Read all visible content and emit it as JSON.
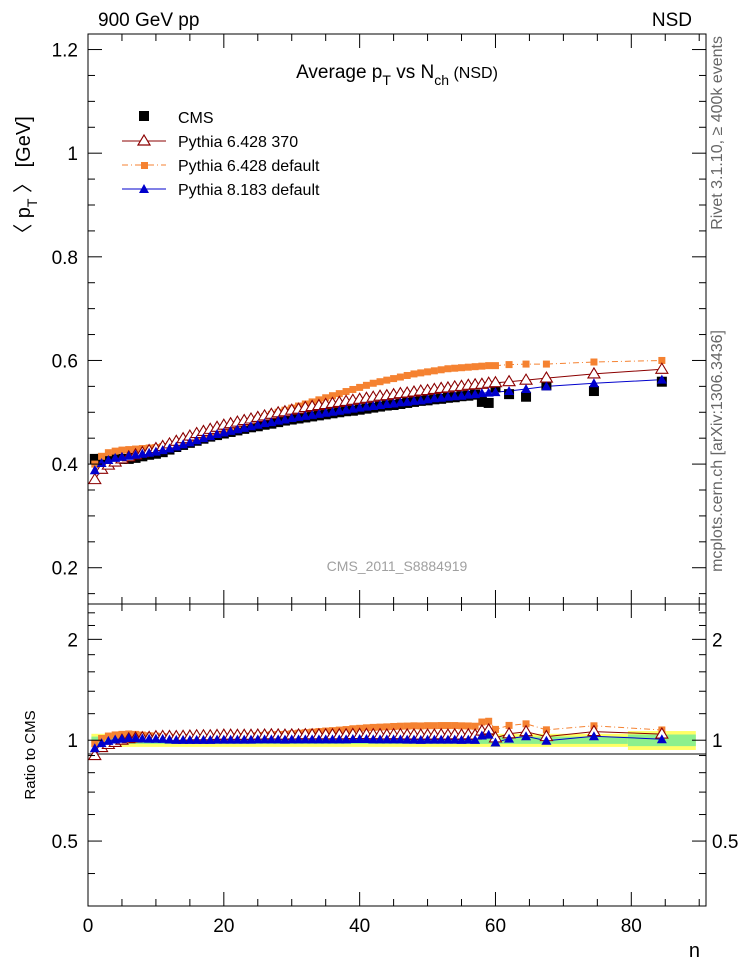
{
  "header": {
    "left": "900 GeV pp",
    "right": "NSD"
  },
  "side_labels": {
    "rivet": "Rivet 3.1.10, ≥ 400k events",
    "mcplots": "mcplots.cern.ch [arXiv:1306.3436]"
  },
  "colors": {
    "cms": "#000000",
    "py6_370": "#8b0000",
    "py6_default": "#f58231",
    "py8_default": "#0000cc",
    "band_inner": "#8df08d",
    "band_outer": "#ffff66"
  },
  "chart_data": [
    {
      "type": "scatter",
      "panel": "main",
      "title_parts": {
        "a": "Average p",
        "a_sub": "T",
        "b": " vs N",
        "b_sub": "ch",
        "c": " (NSD)"
      },
      "ylabel_parts": {
        "open": "〈 p",
        "sub": "T",
        "close": " 〉 [GeV]"
      },
      "watermark": "CMS_2011_S8884919",
      "xlim": [
        0,
        91
      ],
      "ylim": [
        0.13,
        1.23
      ],
      "y_ticks": [
        "0.2",
        "0.4",
        "0.6",
        "0.8",
        "1",
        "1.2"
      ],
      "legend_position": "top-left",
      "legend": [
        "CMS",
        "Pythia 6.428 370",
        "Pythia 6.428 default",
        "Pythia 8.183 default"
      ],
      "series": [
        {
          "name": "CMS",
          "x": [
            1,
            2,
            3,
            4,
            5,
            6,
            7,
            8,
            9,
            10,
            11,
            12,
            13,
            14,
            15,
            16,
            17,
            18,
            19,
            20,
            21,
            22,
            23,
            24,
            25,
            26,
            27,
            28,
            29,
            30,
            31,
            32,
            33,
            34,
            35,
            36,
            37,
            38,
            39,
            40,
            41,
            42,
            43,
            44,
            45,
            46,
            47,
            48,
            49,
            50,
            51,
            52,
            53,
            54,
            55,
            56,
            57,
            58,
            59,
            60,
            62,
            64.5,
            67.5,
            74.5,
            84.5
          ],
          "y": [
            0.41,
            0.41,
            0.41,
            0.41,
            0.41,
            0.41,
            0.412,
            0.415,
            0.418,
            0.42,
            0.423,
            0.428,
            0.433,
            0.437,
            0.441,
            0.445,
            0.449,
            0.453,
            0.456,
            0.459,
            0.462,
            0.465,
            0.468,
            0.471,
            0.473,
            0.476,
            0.478,
            0.481,
            0.484,
            0.486,
            0.488,
            0.49,
            0.492,
            0.494,
            0.496,
            0.498,
            0.5,
            0.502,
            0.503,
            0.505,
            0.507,
            0.509,
            0.511,
            0.513,
            0.514,
            0.516,
            0.518,
            0.52,
            0.522,
            0.523,
            0.525,
            0.526,
            0.528,
            0.529,
            0.531,
            0.532,
            0.534,
            0.52,
            0.518,
            0.548,
            0.535,
            0.53,
            0.552,
            0.541,
            0.559
          ]
        },
        {
          "name": "Pythia 6.428 370",
          "x": [
            1,
            2,
            3,
            4,
            5,
            6,
            7,
            8,
            9,
            10,
            11,
            12,
            13,
            14,
            15,
            16,
            17,
            18,
            19,
            20,
            21,
            22,
            23,
            24,
            25,
            26,
            27,
            28,
            29,
            30,
            31,
            32,
            33,
            34,
            35,
            36,
            37,
            38,
            39,
            40,
            41,
            42,
            43,
            44,
            45,
            46,
            47,
            48,
            49,
            50,
            51,
            52,
            53,
            54,
            55,
            56,
            57,
            58,
            59,
            60,
            62,
            64.5,
            67.5,
            74.5,
            84.5
          ],
          "y": [
            0.37,
            0.39,
            0.398,
            0.404,
            0.41,
            0.414,
            0.418,
            0.422,
            0.426,
            0.43,
            0.434,
            0.439,
            0.444,
            0.449,
            0.454,
            0.459,
            0.463,
            0.467,
            0.471,
            0.475,
            0.478,
            0.481,
            0.484,
            0.487,
            0.49,
            0.493,
            0.496,
            0.499,
            0.501,
            0.504,
            0.506,
            0.509,
            0.511,
            0.513,
            0.515,
            0.517,
            0.519,
            0.521,
            0.523,
            0.525,
            0.527,
            0.529,
            0.531,
            0.532,
            0.534,
            0.536,
            0.537,
            0.539,
            0.541,
            0.542,
            0.544,
            0.546,
            0.547,
            0.549,
            0.55,
            0.552,
            0.553,
            0.554,
            0.556,
            0.557,
            0.559,
            0.562,
            0.566,
            0.574,
            0.583
          ]
        },
        {
          "name": "Pythia 6.428 default",
          "x": [
            1,
            2,
            3,
            4,
            5,
            6,
            7,
            8,
            9,
            10,
            11,
            12,
            13,
            14,
            15,
            16,
            17,
            18,
            19,
            20,
            21,
            22,
            23,
            24,
            25,
            26,
            27,
            28,
            29,
            30,
            31,
            32,
            33,
            34,
            35,
            36,
            37,
            38,
            39,
            40,
            41,
            42,
            43,
            44,
            45,
            46,
            47,
            48,
            49,
            50,
            51,
            52,
            53,
            54,
            55,
            56,
            57,
            58,
            59,
            60,
            62,
            64.5,
            67.5,
            74.5,
            84.5
          ],
          "y": [
            0.4,
            0.415,
            0.422,
            0.425,
            0.427,
            0.428,
            0.429,
            0.43,
            0.431,
            0.432,
            0.434,
            0.437,
            0.44,
            0.444,
            0.448,
            0.452,
            0.456,
            0.46,
            0.464,
            0.468,
            0.472,
            0.476,
            0.48,
            0.484,
            0.488,
            0.492,
            0.496,
            0.5,
            0.504,
            0.508,
            0.512,
            0.516,
            0.52,
            0.524,
            0.528,
            0.532,
            0.536,
            0.54,
            0.544,
            0.548,
            0.552,
            0.556,
            0.559,
            0.562,
            0.565,
            0.568,
            0.571,
            0.574,
            0.576,
            0.578,
            0.58,
            0.582,
            0.584,
            0.585,
            0.586,
            0.587,
            0.588,
            0.589,
            0.59,
            0.59,
            0.592,
            0.593,
            0.593,
            0.597,
            0.6
          ]
        },
        {
          "name": "Pythia 8.183 default",
          "x": [
            1,
            2,
            3,
            4,
            5,
            6,
            7,
            8,
            9,
            10,
            11,
            12,
            13,
            14,
            15,
            16,
            17,
            18,
            19,
            20,
            21,
            22,
            23,
            24,
            25,
            26,
            27,
            28,
            29,
            30,
            31,
            32,
            33,
            34,
            35,
            36,
            37,
            38,
            39,
            40,
            41,
            42,
            43,
            44,
            45,
            46,
            47,
            48,
            49,
            50,
            51,
            52,
            53,
            54,
            55,
            56,
            57,
            58,
            59,
            60,
            62,
            64.5,
            67.5,
            74.5,
            84.5
          ],
          "y": [
            0.388,
            0.402,
            0.408,
            0.412,
            0.414,
            0.416,
            0.418,
            0.42,
            0.422,
            0.424,
            0.427,
            0.43,
            0.434,
            0.438,
            0.442,
            0.446,
            0.45,
            0.454,
            0.458,
            0.461,
            0.464,
            0.467,
            0.47,
            0.473,
            0.476,
            0.479,
            0.481,
            0.484,
            0.486,
            0.489,
            0.491,
            0.493,
            0.495,
            0.497,
            0.499,
            0.501,
            0.503,
            0.505,
            0.507,
            0.509,
            0.511,
            0.512,
            0.514,
            0.516,
            0.517,
            0.519,
            0.52,
            0.522,
            0.523,
            0.525,
            0.527,
            0.528,
            0.53,
            0.531,
            0.532,
            0.534,
            0.535,
            0.537,
            0.538,
            0.539,
            0.541,
            0.545,
            0.55,
            0.556,
            0.563
          ]
        }
      ]
    },
    {
      "type": "scatter",
      "panel": "ratio",
      "ylabel": "Ratio to CMS",
      "xlabel": "n",
      "xlim": [
        0,
        91
      ],
      "ylim": [
        0.32,
        2.55
      ],
      "y_scale": "log",
      "y_ticks": [
        "0.5",
        "1",
        "2"
      ],
      "x_ticks": [
        "0",
        "20",
        "40",
        "60",
        "80"
      ],
      "band": {
        "x_edges": [
          0.5,
          79.5,
          89.5
        ],
        "inner": [
          [
            0.975,
            1.025
          ],
          [
            0.96,
            1.04
          ]
        ],
        "outer": [
          [
            0.955,
            1.045
          ],
          [
            0.935,
            1.065
          ]
        ]
      },
      "series": [
        {
          "name": "Pythia 6.428 370",
          "x": [
            1,
            2,
            3,
            4,
            5,
            6,
            7,
            8,
            9,
            10,
            11,
            12,
            13,
            14,
            15,
            16,
            17,
            18,
            19,
            20,
            21,
            22,
            23,
            24,
            25,
            26,
            27,
            28,
            29,
            30,
            31,
            32,
            33,
            34,
            35,
            36,
            37,
            38,
            39,
            40,
            41,
            42,
            43,
            44,
            45,
            46,
            47,
            48,
            49,
            50,
            51,
            52,
            53,
            54,
            55,
            56,
            57,
            58,
            59,
            60,
            62,
            64.5,
            67.5,
            74.5,
            84.5
          ],
          "y": [
            0.9,
            0.951,
            0.971,
            0.985,
            1,
            1.01,
            1.015,
            1.017,
            1.019,
            1.024,
            1.026,
            1.026,
            1.025,
            1.027,
            1.029,
            1.031,
            1.031,
            1.031,
            1.033,
            1.035,
            1.035,
            1.034,
            1.034,
            1.034,
            1.036,
            1.036,
            1.038,
            1.037,
            1.035,
            1.037,
            1.037,
            1.039,
            1.038,
            1.038,
            1.038,
            1.038,
            1.038,
            1.038,
            1.04,
            1.04,
            1.04,
            1.039,
            1.039,
            1.037,
            1.039,
            1.039,
            1.037,
            1.037,
            1.036,
            1.036,
            1.036,
            1.038,
            1.036,
            1.038,
            1.036,
            1.038,
            1.036,
            1.065,
            1.073,
            1.016,
            1.045,
            1.06,
            1.025,
            1.061,
            1.043
          ]
        },
        {
          "name": "Pythia 6.428 default",
          "x": [
            1,
            2,
            3,
            4,
            5,
            6,
            7,
            8,
            9,
            10,
            11,
            12,
            13,
            14,
            15,
            16,
            17,
            18,
            19,
            20,
            21,
            22,
            23,
            24,
            25,
            26,
            27,
            28,
            29,
            30,
            31,
            32,
            33,
            34,
            35,
            36,
            37,
            38,
            39,
            40,
            41,
            42,
            43,
            44,
            45,
            46,
            47,
            48,
            49,
            50,
            51,
            52,
            53,
            54,
            55,
            56,
            57,
            58,
            59,
            60,
            62,
            64.5,
            67.5,
            74.5,
            84.5
          ],
          "y": [
            0.976,
            1.012,
            1.029,
            1.037,
            1.041,
            1.044,
            1.041,
            1.036,
            1.031,
            1.029,
            1.026,
            1.021,
            1.016,
            1.016,
            1.016,
            1.016,
            1.016,
            1.015,
            1.018,
            1.02,
            1.022,
            1.024,
            1.026,
            1.028,
            1.032,
            1.034,
            1.038,
            1.04,
            1.041,
            1.045,
            1.049,
            1.053,
            1.057,
            1.061,
            1.065,
            1.068,
            1.072,
            1.076,
            1.082,
            1.085,
            1.089,
            1.092,
            1.094,
            1.096,
            1.099,
            1.101,
            1.102,
            1.104,
            1.103,
            1.105,
            1.105,
            1.106,
            1.106,
            1.106,
            1.104,
            1.103,
            1.101,
            1.133,
            1.139,
            1.077,
            1.107,
            1.119,
            1.074,
            1.104,
            1.073
          ]
        },
        {
          "name": "Pythia 8.183 default",
          "x": [
            1,
            2,
            3,
            4,
            5,
            6,
            7,
            8,
            9,
            10,
            11,
            12,
            13,
            14,
            15,
            16,
            17,
            18,
            19,
            20,
            21,
            22,
            23,
            24,
            25,
            26,
            27,
            28,
            29,
            30,
            31,
            32,
            33,
            34,
            35,
            36,
            37,
            38,
            39,
            40,
            41,
            42,
            43,
            44,
            45,
            46,
            47,
            48,
            49,
            50,
            51,
            52,
            53,
            54,
            55,
            56,
            57,
            58,
            59,
            60,
            62,
            64.5,
            67.5,
            74.5,
            84.5
          ],
          "y": [
            0.946,
            0.98,
            0.995,
            1.005,
            1.01,
            1.015,
            1.015,
            1.012,
            1.01,
            1.01,
            1.009,
            1.005,
            1.002,
            1.002,
            1.002,
            1.002,
            1.002,
            1.002,
            1.004,
            1.004,
            1.004,
            1.004,
            1.004,
            1.004,
            1.006,
            1.006,
            1.006,
            1.006,
            1.004,
            1.006,
            1.006,
            1.006,
            1.006,
            1.006,
            1.006,
            1.006,
            1.006,
            1.006,
            1.008,
            1.008,
            1.008,
            1.006,
            1.006,
            1.006,
            1.006,
            1.006,
            1.004,
            1.004,
            1.002,
            1.004,
            1.004,
            1.004,
            1.004,
            1.004,
            1.002,
            1.004,
            1.002,
            1.033,
            1.039,
            0.984,
            1.011,
            1.028,
            0.996,
            1.028,
            1.007
          ]
        }
      ]
    }
  ]
}
